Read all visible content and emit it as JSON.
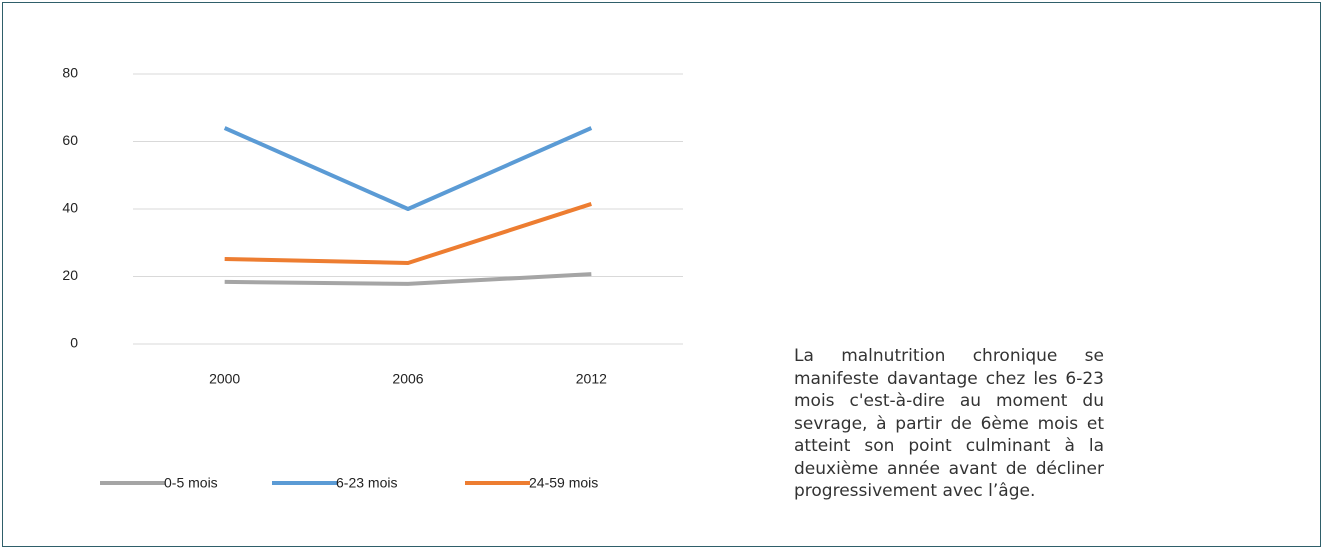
{
  "chart_data": {
    "type": "line",
    "categories": [
      "2000",
      "2006",
      "2012"
    ],
    "series": [
      {
        "name": "0-5 mois",
        "color": "#a5a5a5",
        "values": [
          18.4,
          17.8,
          20.7
        ]
      },
      {
        "name": "6-23 mois",
        "color": "#5b9bd5",
        "values": [
          64,
          40,
          64
        ]
      },
      {
        "name": "24-59 mois",
        "color": "#ed7d31",
        "values": [
          25.2,
          24,
          41.5
        ]
      }
    ],
    "ylim": [
      0,
      80
    ],
    "yticks": [
      0,
      20,
      40,
      60,
      80
    ],
    "grid": true,
    "legend": "bottom"
  },
  "text": "La malnutrition chronique se manifeste davantage chez les 6-23 mois c'est-à-dire au moment du sevrage, à partir de 6ème mois et atteint son point culminant à la deuxième année avant de décliner progressivement avec l’âge."
}
